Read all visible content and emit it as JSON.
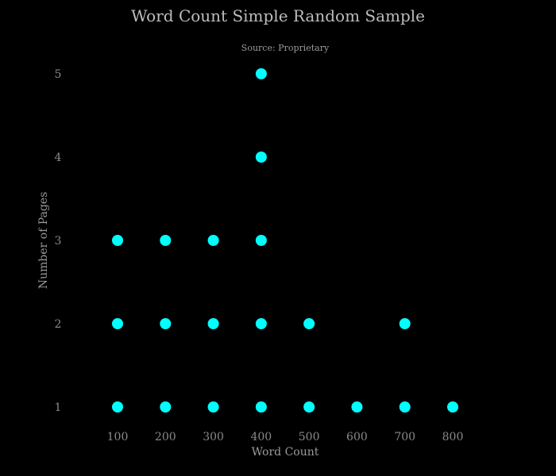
{
  "chart_data": {
    "type": "scatter",
    "title": "Word Count Simple Random Sample",
    "subtitle": "Source: Proprietary",
    "xlabel": "Word Count",
    "ylabel": "Number of Pages",
    "x_ticks": [
      "100",
      "200",
      "300",
      "400",
      "500",
      "600",
      "700",
      "800"
    ],
    "y_ticks": [
      "1",
      "2",
      "3",
      "4",
      "5"
    ],
    "x_tick_values": [
      100,
      200,
      300,
      400,
      500,
      600,
      700,
      800
    ],
    "y_tick_values": [
      1,
      2,
      3,
      4,
      5
    ],
    "xlim": [
      100,
      800
    ],
    "ylim": [
      1,
      5
    ],
    "grid": false,
    "marker_color": "#00ffff",
    "background": "#000000",
    "series": [
      {
        "points": [
          {
            "x": 100,
            "y": 1
          },
          {
            "x": 200,
            "y": 1
          },
          {
            "x": 300,
            "y": 1
          },
          {
            "x": 400,
            "y": 1
          },
          {
            "x": 500,
            "y": 1
          },
          {
            "x": 600,
            "y": 1
          },
          {
            "x": 700,
            "y": 1
          },
          {
            "x": 800,
            "y": 1
          },
          {
            "x": 100,
            "y": 2
          },
          {
            "x": 200,
            "y": 2
          },
          {
            "x": 300,
            "y": 2
          },
          {
            "x": 400,
            "y": 2
          },
          {
            "x": 500,
            "y": 2
          },
          {
            "x": 700,
            "y": 2
          },
          {
            "x": 100,
            "y": 3
          },
          {
            "x": 200,
            "y": 3
          },
          {
            "x": 300,
            "y": 3
          },
          {
            "x": 400,
            "y": 3
          },
          {
            "x": 400,
            "y": 4
          },
          {
            "x": 400,
            "y": 5
          }
        ]
      }
    ]
  }
}
